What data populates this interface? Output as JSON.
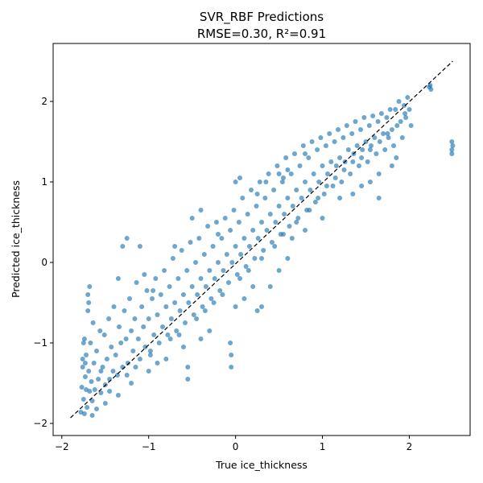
{
  "chart_data": {
    "type": "scatter",
    "title": "SVR_RBF Predictions",
    "subtitle": "RMSE=0.30, R²=0.91",
    "xlabel": "True ice_thickness",
    "ylabel": "Predicted ice_thickness",
    "xlim": [
      -2.1,
      2.7
    ],
    "ylim": [
      -2.15,
      2.72
    ],
    "xticks": [
      -2,
      -1,
      0,
      1,
      2
    ],
    "yticks": [
      -2,
      -1,
      0,
      1,
      2
    ],
    "grid": false,
    "reference_line": {
      "style": "dashed",
      "color": "#000000",
      "from": [
        -1.9,
        -1.93
      ],
      "to": [
        2.5,
        2.5
      ]
    },
    "series": [
      {
        "color": "#1f77b4",
        "points": [
          [
            -1.78,
            -1.86
          ],
          [
            -1.77,
            -1.55
          ],
          [
            -1.76,
            -1.2
          ],
          [
            -1.75,
            -1.7
          ],
          [
            -1.74,
            -0.95
          ],
          [
            -1.73,
            -1.42
          ],
          [
            -1.72,
            -1.15
          ],
          [
            -1.71,
            -1.8
          ],
          [
            -1.7,
            -0.6
          ],
          [
            -1.69,
            -1.35
          ],
          [
            -1.68,
            -1.6
          ],
          [
            -1.67,
            -1.0
          ],
          [
            -1.66,
            -1.48
          ],
          [
            -1.65,
            -1.72
          ],
          [
            -1.64,
            -0.75
          ],
          [
            -1.63,
            -1.25
          ],
          [
            -1.62,
            -1.58
          ],
          [
            -1.6,
            -1.1
          ],
          [
            -1.58,
            -1.45
          ],
          [
            -1.56,
            -0.85
          ],
          [
            -1.55,
            -1.62
          ],
          [
            -1.53,
            -1.3
          ],
          [
            -1.51,
            -0.9
          ],
          [
            -1.5,
            -1.52
          ],
          [
            -1.48,
            -1.2
          ],
          [
            -1.46,
            -0.7
          ],
          [
            -1.45,
            -1.45
          ],
          [
            -1.43,
            -1.05
          ],
          [
            -1.41,
            -1.35
          ],
          [
            -1.4,
            -0.55
          ],
          [
            -1.38,
            -1.15
          ],
          [
            -1.36,
            -1.4
          ],
          [
            -1.34,
            -0.8
          ],
          [
            -1.32,
            -1.0
          ],
          [
            -1.3,
            -1.3
          ],
          [
            -1.28,
            -0.6
          ],
          [
            -1.26,
            -0.95
          ],
          [
            -1.24,
            -1.25
          ],
          [
            -1.22,
            -0.45
          ],
          [
            -1.2,
            -0.85
          ],
          [
            -1.18,
            -1.1
          ],
          [
            -1.16,
            -0.7
          ],
          [
            -1.14,
            -0.25
          ],
          [
            -1.12,
            -0.95
          ],
          [
            -1.1,
            -1.2
          ],
          [
            -1.08,
            -0.55
          ],
          [
            -1.06,
            -0.8
          ],
          [
            -1.04,
            -1.05
          ],
          [
            -1.02,
            -0.35
          ],
          [
            -1.0,
            -0.7
          ],
          [
            -0.98,
            -1.1
          ],
          [
            -0.96,
            -0.45
          ],
          [
            -0.94,
            -0.9
          ],
          [
            -0.92,
            -0.2
          ],
          [
            -0.9,
            -0.65
          ],
          [
            -0.88,
            -1.0
          ],
          [
            -0.86,
            -0.4
          ],
          [
            -0.84,
            -0.8
          ],
          [
            -0.82,
            -0.1
          ],
          [
            -0.8,
            -0.55
          ],
          [
            -0.78,
            -0.9
          ],
          [
            -0.76,
            -0.3
          ],
          [
            -0.74,
            -0.7
          ],
          [
            -0.72,
            0.05
          ],
          [
            -0.7,
            -0.5
          ],
          [
            -0.68,
            -0.85
          ],
          [
            -0.66,
            -0.2
          ],
          [
            -0.64,
            -0.6
          ],
          [
            -0.62,
            0.15
          ],
          [
            -0.6,
            -0.4
          ],
          [
            -0.58,
            -0.75
          ],
          [
            -0.56,
            -0.1
          ],
          [
            -0.54,
            -0.5
          ],
          [
            -0.52,
            0.25
          ],
          [
            -0.5,
            -0.3
          ],
          [
            -0.48,
            -0.65
          ],
          [
            -0.46,
            0.0
          ],
          [
            -0.44,
            -0.4
          ],
          [
            -0.42,
            0.3
          ],
          [
            -0.4,
            -0.2
          ],
          [
            -0.38,
            -0.55
          ],
          [
            -0.36,
            0.1
          ],
          [
            -0.34,
            -0.3
          ],
          [
            -0.32,
            0.45
          ],
          [
            -0.3,
            -0.1
          ],
          [
            -0.28,
            -0.45
          ],
          [
            -0.26,
            0.2
          ],
          [
            -0.24,
            -0.2
          ],
          [
            -0.22,
            0.5
          ],
          [
            -0.2,
            0.0
          ],
          [
            -0.18,
            -0.35
          ],
          [
            -0.16,
            0.3
          ],
          [
            -0.14,
            -0.1
          ],
          [
            -0.12,
            0.55
          ],
          [
            -0.1,
            0.1
          ],
          [
            -0.08,
            -0.25
          ],
          [
            -0.06,
            0.4
          ],
          [
            -0.04,
            0.0
          ],
          [
            -0.02,
            0.65
          ],
          [
            0.0,
            0.2
          ],
          [
            0.02,
            -0.15
          ],
          [
            0.04,
            0.5
          ],
          [
            0.06,
            0.1
          ],
          [
            0.08,
            0.8
          ],
          [
            0.1,
            0.3
          ],
          [
            0.12,
            -0.05
          ],
          [
            0.14,
            0.6
          ],
          [
            0.16,
            0.2
          ],
          [
            0.18,
            0.9
          ],
          [
            0.2,
            0.4
          ],
          [
            0.22,
            0.05
          ],
          [
            0.24,
            0.7
          ],
          [
            0.26,
            0.3
          ],
          [
            0.28,
            1.0
          ],
          [
            0.3,
            0.5
          ],
          [
            0.32,
            0.15
          ],
          [
            0.34,
            0.8
          ],
          [
            0.36,
            0.4
          ],
          [
            0.38,
            1.1
          ],
          [
            0.4,
            0.6
          ],
          [
            0.42,
            0.25
          ],
          [
            0.44,
            0.9
          ],
          [
            0.46,
            0.5
          ],
          [
            0.48,
            1.2
          ],
          [
            0.5,
            0.7
          ],
          [
            0.52,
            0.35
          ],
          [
            0.54,
            1.0
          ],
          [
            0.56,
            0.6
          ],
          [
            0.58,
            1.3
          ],
          [
            0.6,
            0.8
          ],
          [
            0.62,
            0.45
          ],
          [
            0.64,
            1.1
          ],
          [
            0.66,
            0.7
          ],
          [
            0.68,
            1.35
          ],
          [
            0.7,
            0.9
          ],
          [
            0.72,
            0.55
          ],
          [
            0.74,
            1.2
          ],
          [
            0.76,
            0.8
          ],
          [
            0.78,
            1.45
          ],
          [
            0.8,
            1.0
          ],
          [
            0.82,
            0.65
          ],
          [
            0.84,
            1.3
          ],
          [
            0.86,
            0.9
          ],
          [
            0.88,
            1.5
          ],
          [
            0.9,
            1.1
          ],
          [
            0.92,
            0.75
          ],
          [
            0.94,
            1.4
          ],
          [
            0.96,
            1.0
          ],
          [
            0.98,
            1.55
          ],
          [
            1.0,
            1.2
          ],
          [
            1.02,
            0.85
          ],
          [
            1.04,
            1.45
          ],
          [
            1.06,
            1.1
          ],
          [
            1.08,
            1.6
          ],
          [
            1.1,
            1.25
          ],
          [
            1.12,
            0.95
          ],
          [
            1.14,
            1.5
          ],
          [
            1.16,
            1.2
          ],
          [
            1.18,
            1.65
          ],
          [
            1.2,
            1.3
          ],
          [
            1.22,
            1.0
          ],
          [
            1.24,
            1.55
          ],
          [
            1.26,
            1.25
          ],
          [
            1.28,
            1.7
          ],
          [
            1.3,
            1.4
          ],
          [
            1.32,
            1.1
          ],
          [
            1.34,
            1.6
          ],
          [
            1.36,
            1.35
          ],
          [
            1.38,
            1.75
          ],
          [
            1.4,
            1.45
          ],
          [
            1.42,
            1.2
          ],
          [
            1.44,
            1.65
          ],
          [
            1.46,
            1.4
          ],
          [
            1.48,
            1.8
          ],
          [
            1.5,
            1.5
          ],
          [
            1.52,
            1.25
          ],
          [
            1.54,
            1.7
          ],
          [
            1.56,
            1.45
          ],
          [
            1.58,
            1.82
          ],
          [
            1.6,
            1.55
          ],
          [
            1.62,
            1.35
          ],
          [
            1.64,
            1.75
          ],
          [
            1.66,
            1.5
          ],
          [
            1.68,
            1.85
          ],
          [
            1.7,
            1.6
          ],
          [
            1.72,
            1.4
          ],
          [
            1.74,
            1.8
          ],
          [
            1.76,
            1.55
          ],
          [
            1.78,
            1.9
          ],
          [
            1.8,
            1.65
          ],
          [
            1.82,
            1.45
          ],
          [
            1.84,
            1.9
          ],
          [
            1.86,
            1.7
          ],
          [
            1.88,
            2.0
          ],
          [
            1.9,
            1.75
          ],
          [
            1.92,
            1.55
          ],
          [
            1.94,
            1.95
          ],
          [
            1.96,
            1.8
          ],
          [
            1.98,
            2.05
          ],
          [
            2.0,
            1.9
          ],
          [
            2.02,
            1.7
          ],
          [
            2.24,
            2.2
          ],
          [
            2.25,
            2.15
          ],
          [
            2.23,
            2.18
          ],
          [
            2.49,
            1.4
          ],
          [
            2.49,
            1.5
          ],
          [
            2.5,
            1.45
          ],
          [
            2.49,
            1.35
          ],
          [
            -1.7,
            -0.4
          ],
          [
            -1.69,
            -0.5
          ],
          [
            -1.68,
            -0.3
          ],
          [
            -1.74,
            -1.88
          ],
          [
            -1.6,
            -1.82
          ],
          [
            -1.5,
            -1.75
          ],
          [
            -1.35,
            -1.65
          ],
          [
            -1.2,
            -1.5
          ],
          [
            -1.0,
            -1.35
          ],
          [
            -0.9,
            -1.25
          ],
          [
            -0.8,
            -1.2
          ],
          [
            -0.6,
            -1.05
          ],
          [
            -0.55,
            -1.45
          ],
          [
            -0.55,
            -1.3
          ],
          [
            -0.4,
            -0.95
          ],
          [
            -0.3,
            -0.85
          ],
          [
            -0.05,
            -1.15
          ],
          [
            -0.05,
            -1.3
          ],
          [
            -0.06,
            -1.0
          ],
          [
            0.0,
            -0.55
          ],
          [
            0.1,
            -0.45
          ],
          [
            0.2,
            -0.3
          ],
          [
            0.25,
            -0.6
          ],
          [
            0.3,
            -0.55
          ],
          [
            0.4,
            -0.3
          ],
          [
            0.5,
            -0.1
          ],
          [
            0.6,
            0.05
          ],
          [
            0.65,
            0.3
          ],
          [
            0.8,
            0.4
          ],
          [
            1.0,
            0.55
          ],
          [
            1.2,
            0.8
          ],
          [
            1.35,
            0.85
          ],
          [
            1.45,
            0.95
          ],
          [
            1.55,
            1.0
          ],
          [
            1.65,
            1.1
          ],
          [
            1.8,
            1.2
          ],
          [
            1.85,
            1.3
          ],
          [
            1.65,
            0.8
          ],
          [
            0.0,
            1.0
          ],
          [
            0.05,
            1.05
          ],
          [
            -0.4,
            0.65
          ],
          [
            -0.5,
            0.55
          ],
          [
            -0.7,
            0.2
          ],
          [
            -1.05,
            -0.15
          ],
          [
            -1.25,
            0.3
          ],
          [
            -1.3,
            0.2
          ],
          [
            -1.1,
            0.2
          ],
          [
            -1.35,
            -0.2
          ],
          [
            -0.95,
            -0.35
          ],
          [
            0.55,
            1.05
          ],
          [
            0.6,
            1.15
          ],
          [
            0.8,
            1.35
          ],
          [
            0.5,
            1.1
          ],
          [
            0.35,
            1.0
          ],
          [
            0.25,
            0.85
          ],
          [
            -0.2,
            0.35
          ],
          [
            -1.75,
            -1.0
          ],
          [
            -1.76,
            -1.3
          ],
          [
            -1.72,
            -1.58
          ],
          [
            -1.73,
            -1.25
          ],
          [
            -1.65,
            -1.9
          ],
          [
            -1.55,
            -1.35
          ],
          [
            -1.45,
            -1.6
          ],
          [
            -1.25,
            -1.4
          ],
          [
            -1.15,
            -1.3
          ],
          [
            -0.98,
            -1.15
          ],
          [
            -0.75,
            -0.95
          ],
          [
            -0.65,
            -0.9
          ],
          [
            -0.45,
            -0.7
          ],
          [
            -0.35,
            -0.6
          ],
          [
            -0.25,
            -0.5
          ],
          [
            -0.15,
            -0.4
          ],
          [
            0.05,
            -0.2
          ],
          [
            0.15,
            -0.1
          ],
          [
            0.3,
            0.05
          ],
          [
            0.45,
            0.2
          ],
          [
            0.55,
            0.35
          ],
          [
            0.7,
            0.5
          ],
          [
            0.85,
            0.65
          ],
          [
            0.95,
            0.8
          ],
          [
            1.05,
            0.95
          ],
          [
            1.15,
            1.05
          ],
          [
            1.25,
            1.15
          ],
          [
            1.35,
            1.25
          ],
          [
            1.45,
            1.3
          ],
          [
            1.55,
            1.4
          ],
          [
            1.75,
            1.6
          ],
          [
            1.95,
            1.85
          ]
        ]
      }
    ]
  }
}
